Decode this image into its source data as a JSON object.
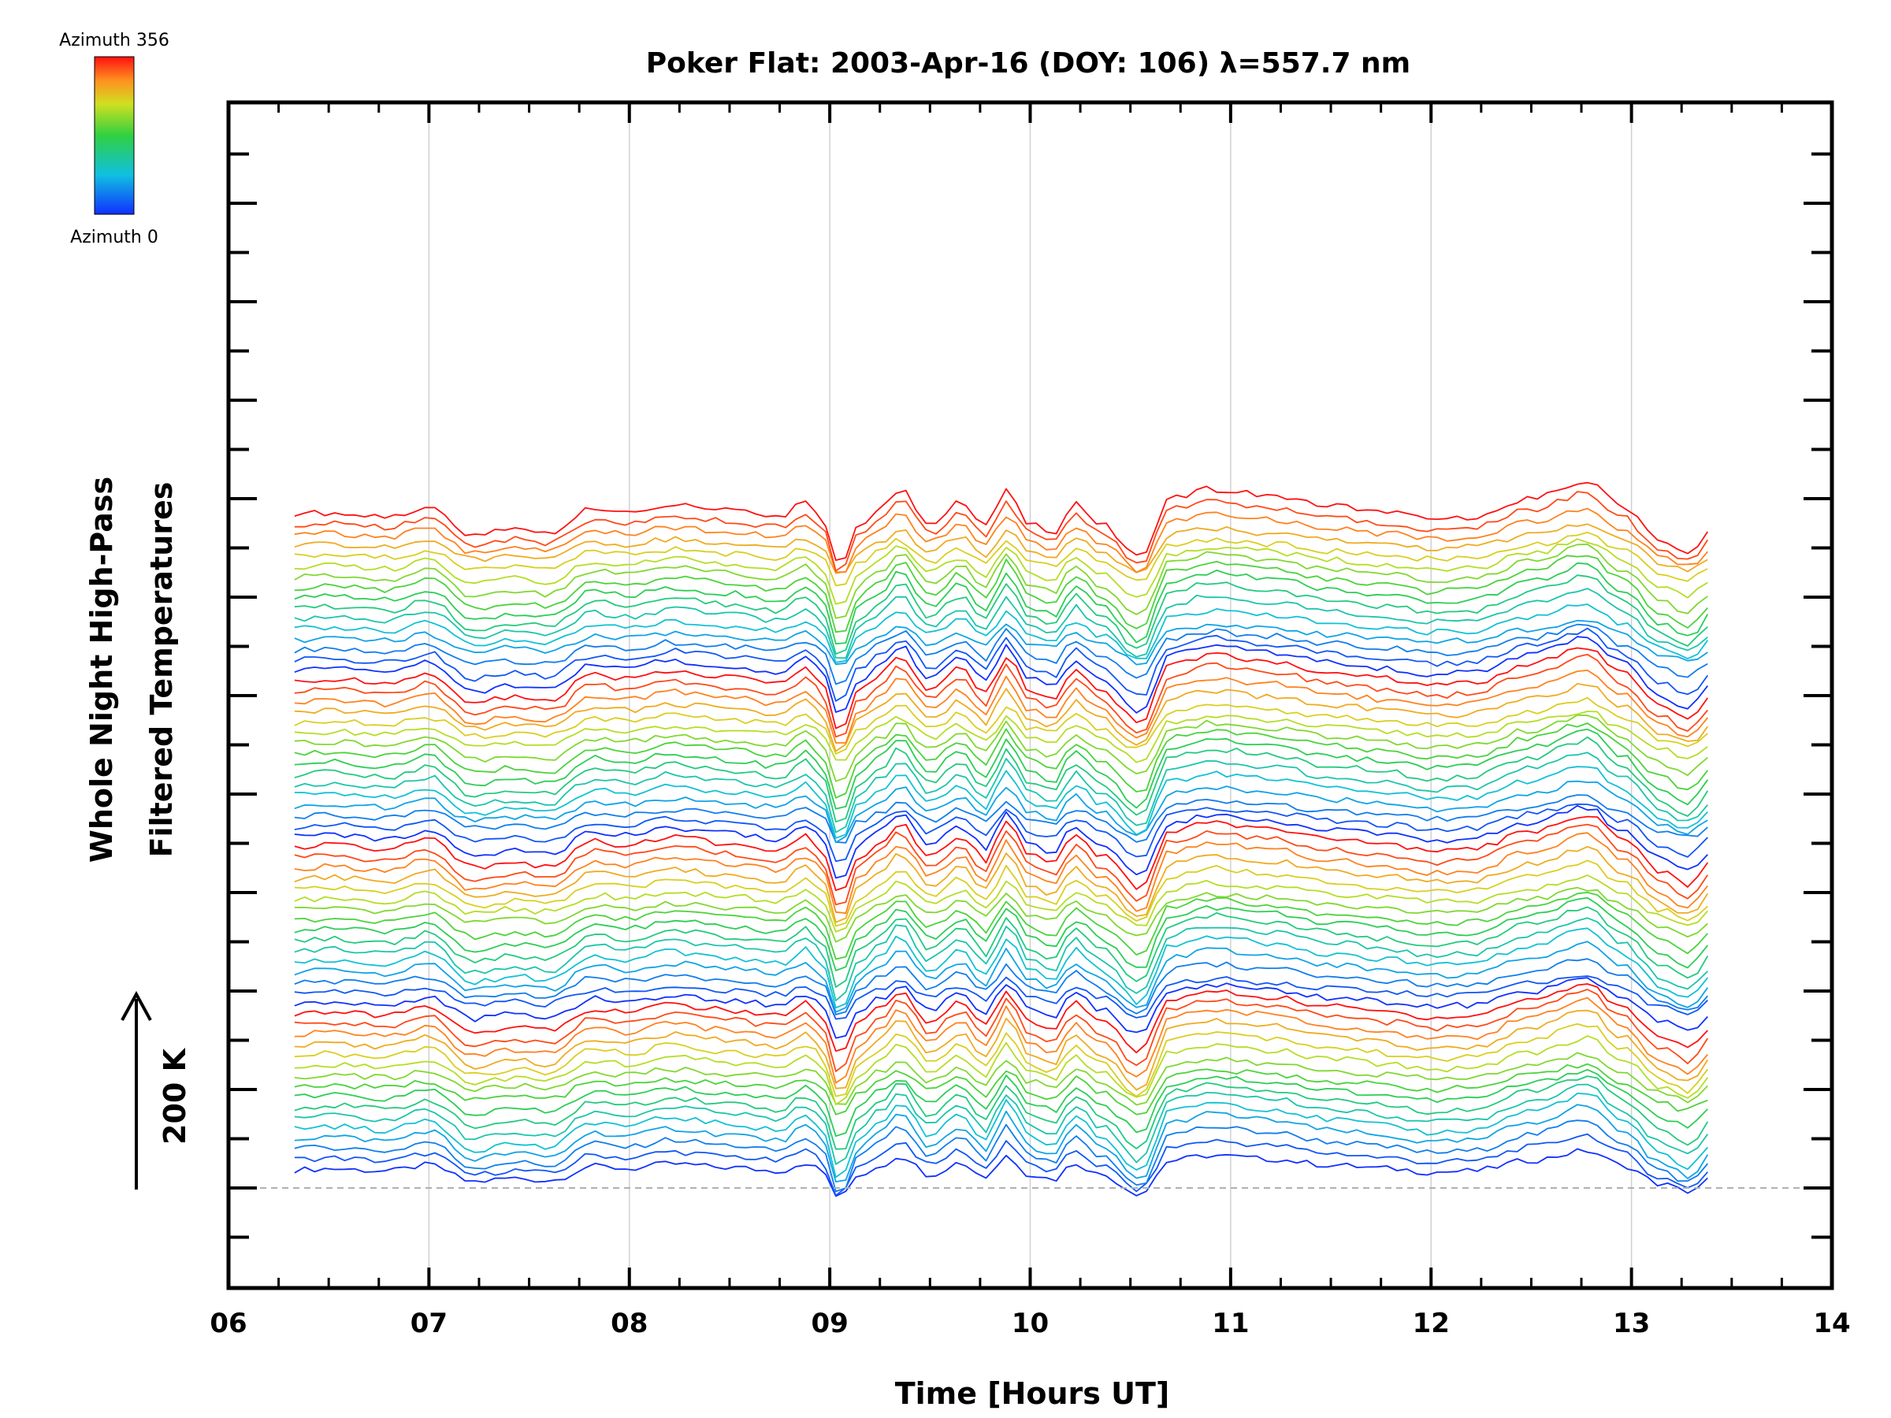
{
  "chart_data": {
    "type": "line",
    "title": "Poker Flat: 2003-Apr-16 (DOY: 106) λ=557.7 nm",
    "xlabel": "Time [Hours UT]",
    "ylabel_line1": "Whole Night High-Pass",
    "ylabel_line2": "Filtered Temperatures",
    "scale_label": "200 K",
    "colorbar_top": "Azimuth 356",
    "colorbar_bottom": "Azimuth 0",
    "xlim": [
      6,
      14
    ],
    "x_tick_labels": [
      "06",
      "07",
      "08",
      "09",
      "10",
      "11",
      "12",
      "13",
      "14"
    ],
    "x_range_of_data": [
      6.33,
      13.42
    ],
    "grid": "vertical",
    "n_series": 64,
    "azimuth_range": [
      0,
      356
    ],
    "baseline_dashed": true,
    "colors": {
      "azimuth_low": "#1030ff",
      "azimuth_mid": "#30d040",
      "azimuth_high": "#ff1010",
      "grid": "#d0d0d0",
      "axis": "#000000"
    },
    "profile_note_points": [
      [
        6.33,
        0
      ],
      [
        6.5,
        5
      ],
      [
        6.8,
        -5
      ],
      [
        7.0,
        20
      ],
      [
        7.22,
        -50
      ],
      [
        7.42,
        -35
      ],
      [
        7.6,
        -45
      ],
      [
        7.82,
        15
      ],
      [
        8.0,
        5
      ],
      [
        8.2,
        25
      ],
      [
        8.5,
        10
      ],
      [
        8.75,
        -5
      ],
      [
        8.88,
        30
      ],
      [
        8.95,
        5
      ],
      [
        9.05,
        -120
      ],
      [
        9.15,
        -20
      ],
      [
        9.25,
        15
      ],
      [
        9.35,
        60
      ],
      [
        9.5,
        -20
      ],
      [
        9.65,
        30
      ],
      [
        9.78,
        -30
      ],
      [
        9.88,
        60
      ],
      [
        10.0,
        -20
      ],
      [
        10.12,
        -40
      ],
      [
        10.22,
        30
      ],
      [
        10.35,
        -20
      ],
      [
        10.55,
        -100
      ],
      [
        10.7,
        40
      ],
      [
        10.9,
        60
      ],
      [
        11.2,
        45
      ],
      [
        11.5,
        20
      ],
      [
        11.8,
        5
      ],
      [
        12.0,
        -10
      ],
      [
        12.2,
        -5
      ],
      [
        12.5,
        40
      ],
      [
        12.78,
        80
      ],
      [
        12.95,
        20
      ],
      [
        13.15,
        -60
      ],
      [
        13.28,
        -90
      ],
      [
        13.42,
        -30
      ]
    ]
  }
}
